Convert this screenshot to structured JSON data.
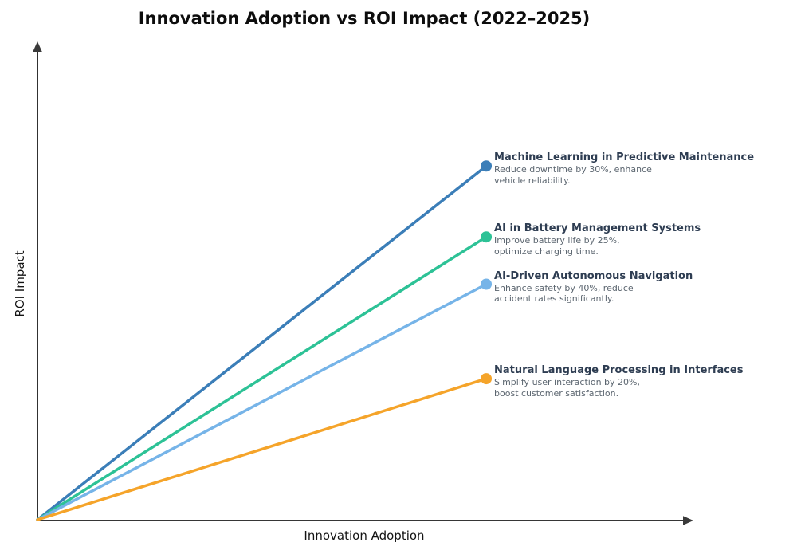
{
  "chart_data": {
    "type": "line",
    "title": "Innovation Adoption vs ROI Impact (2022–2025)",
    "xlabel": "Innovation Adoption",
    "ylabel": "ROI Impact",
    "xlim": [
      0,
      1
    ],
    "ylim": [
      0,
      1
    ],
    "grid": false,
    "legend": "none",
    "axis_style": "bare black axes with arrowheads, no ticks or tick labels",
    "axis_color": "#1a1a1a",
    "series": [
      {
        "name": "Machine Learning in Predictive Maintenance",
        "desc_lines": [
          "Reduce downtime by 30%, enhance",
          "vehicle reliability."
        ],
        "color": "#3b7eb8",
        "x": [
          0,
          0.69
        ],
        "y": [
          0,
          0.75
        ]
      },
      {
        "name": "AI in Battery Management Systems",
        "desc_lines": [
          "Improve battery life by 25%,",
          "optimize charging time."
        ],
        "color": "#2dc296",
        "x": [
          0,
          0.69
        ],
        "y": [
          0,
          0.6
        ]
      },
      {
        "name": "AI-Driven Autonomous Navigation",
        "desc_lines": [
          "Enhance safety by 40%, reduce",
          "accident rates significantly."
        ],
        "color": "#76b4e8",
        "x": [
          0,
          0.69
        ],
        "y": [
          0,
          0.5
        ]
      },
      {
        "name": "Natural Language Processing in Interfaces",
        "desc_lines": [
          "Simplify user interaction by 20%,",
          "boost customer satisfaction."
        ],
        "color": "#f5a42a",
        "x": [
          0,
          0.69
        ],
        "y": [
          0,
          0.3
        ]
      }
    ]
  }
}
